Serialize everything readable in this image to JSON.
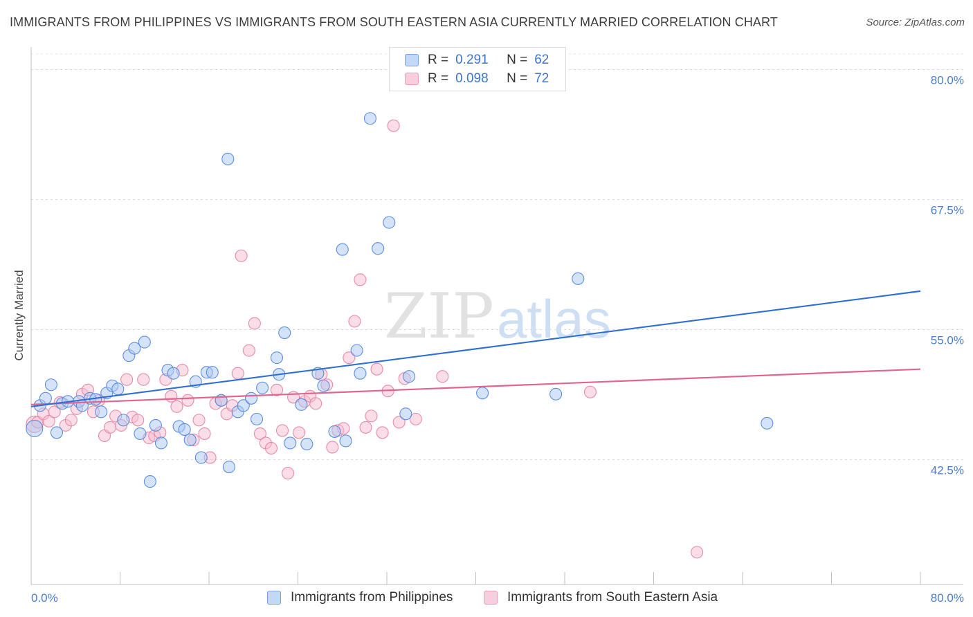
{
  "title": "IMMIGRANTS FROM PHILIPPINES VS IMMIGRANTS FROM SOUTH EASTERN ASIA CURRENTLY MARRIED CORRELATION CHART",
  "source": "Source: ZipAtlas.com",
  "watermark": {
    "zip": "ZIP",
    "atlas": "atlas"
  },
  "legend": {
    "rows": [
      {
        "r_label": "R =",
        "r_value": "0.291",
        "n_label": "N =",
        "n_value": "62"
      },
      {
        "r_label": "R =",
        "r_value": "0.098",
        "n_label": "N =",
        "n_value": "72"
      }
    ]
  },
  "colors": {
    "blue_fill": "#a9c8f2",
    "blue_stroke": "#5b8ee0",
    "blue_line": "#2f6fd3",
    "pink_fill": "#f6bcd0",
    "pink_stroke": "#e68aa8",
    "pink_line": "#e0658f",
    "tick_text": "#4a7cc9"
  },
  "chart_data": {
    "type": "scatter",
    "title": "IMMIGRANTS FROM PHILIPPINES VS IMMIGRANTS FROM SOUTH EASTERN ASIA CURRENTLY MARRIED CORRELATION CHART",
    "xlabel": "",
    "ylabel": "Currently Married",
    "xlim": [
      0,
      80
    ],
    "ylim": [
      30.5,
      81.5
    ],
    "x_tick_labels": [
      {
        "value": 0,
        "label": "0.0%"
      },
      {
        "value": 80,
        "label": "80.0%"
      }
    ],
    "y_ticks": [
      {
        "value": 42.5,
        "label": "42.5%"
      },
      {
        "value": 55.0,
        "label": "55.0%"
      },
      {
        "value": 67.5,
        "label": "67.5%"
      },
      {
        "value": 80.0,
        "label": "80.0%"
      }
    ],
    "grid": "horizontal dashed",
    "legend_position": "top-center",
    "series": [
      {
        "name": "Immigrants from Philippines",
        "r": 0.291,
        "n": 62,
        "trend": {
          "x": [
            0,
            80
          ],
          "y": [
            47.6,
            58.7
          ]
        },
        "points": [
          [
            0.3,
            45.5
          ],
          [
            0.8,
            47.7
          ],
          [
            1.3,
            48.4
          ],
          [
            1.8,
            49.7
          ],
          [
            2.3,
            45.1
          ],
          [
            2.8,
            47.9
          ],
          [
            3.3,
            48.1
          ],
          [
            4.3,
            48.1
          ],
          [
            4.6,
            47.7
          ],
          [
            5.3,
            48.4
          ],
          [
            5.8,
            48.3
          ],
          [
            6.3,
            47.1
          ],
          [
            6.8,
            48.9
          ],
          [
            7.3,
            49.6
          ],
          [
            7.8,
            49.3
          ],
          [
            8.3,
            46.3
          ],
          [
            8.8,
            52.5
          ],
          [
            9.3,
            53.2
          ],
          [
            10.2,
            53.8
          ],
          [
            9.8,
            45.0
          ],
          [
            11.2,
            45.8
          ],
          [
            11.7,
            44.1
          ],
          [
            12.3,
            51.1
          ],
          [
            12.8,
            50.8
          ],
          [
            13.3,
            45.7
          ],
          [
            13.8,
            45.4
          ],
          [
            14.3,
            44.4
          ],
          [
            14.8,
            50.0
          ],
          [
            15.3,
            42.7
          ],
          [
            15.8,
            50.9
          ],
          [
            16.3,
            50.9
          ],
          [
            10.7,
            40.4
          ],
          [
            17.1,
            48.2
          ],
          [
            17.8,
            41.8
          ],
          [
            18.6,
            47.1
          ],
          [
            19.1,
            47.7
          ],
          [
            19.8,
            48.4
          ],
          [
            20.3,
            46.4
          ],
          [
            20.8,
            49.4
          ],
          [
            22.1,
            52.3
          ],
          [
            22.3,
            50.7
          ],
          [
            22.8,
            54.7
          ],
          [
            23.3,
            44.1
          ],
          [
            24.3,
            47.8
          ],
          [
            24.8,
            44.0
          ],
          [
            25.8,
            50.8
          ],
          [
            26.3,
            49.6
          ],
          [
            27.3,
            45.2
          ],
          [
            28.3,
            44.3
          ],
          [
            28.0,
            62.7
          ],
          [
            29.3,
            53.0
          ],
          [
            29.6,
            50.8
          ],
          [
            31.2,
            62.8
          ],
          [
            32.2,
            65.3
          ],
          [
            33.7,
            46.9
          ],
          [
            34.0,
            50.5
          ],
          [
            17.7,
            71.4
          ],
          [
            30.5,
            75.3
          ],
          [
            49.2,
            59.9
          ],
          [
            47.2,
            48.8
          ],
          [
            66.2,
            46.0
          ],
          [
            40.6,
            48.9
          ]
        ]
      },
      {
        "name": "Immigrants from South Eastern Asia",
        "r": 0.098,
        "n": 72,
        "trend": {
          "x": [
            0,
            80
          ],
          "y": [
            47.8,
            51.2
          ]
        },
        "points": [
          [
            0.3,
            45.9
          ],
          [
            0.6,
            46.1
          ],
          [
            1.1,
            46.9
          ],
          [
            1.6,
            46.2
          ],
          [
            2.1,
            47.1
          ],
          [
            2.6,
            48.0
          ],
          [
            3.1,
            45.8
          ],
          [
            3.6,
            46.3
          ],
          [
            4.1,
            47.4
          ],
          [
            4.6,
            48.8
          ],
          [
            5.1,
            49.2
          ],
          [
            5.6,
            47.1
          ],
          [
            6.1,
            48.2
          ],
          [
            6.6,
            44.8
          ],
          [
            7.1,
            45.6
          ],
          [
            7.6,
            46.7
          ],
          [
            8.1,
            45.8
          ],
          [
            8.6,
            50.2
          ],
          [
            9.1,
            46.6
          ],
          [
            9.6,
            46.3
          ],
          [
            10.1,
            50.2
          ],
          [
            10.6,
            44.6
          ],
          [
            11.1,
            44.8
          ],
          [
            11.6,
            45.1
          ],
          [
            12.1,
            50.2
          ],
          [
            12.6,
            48.6
          ],
          [
            13.1,
            47.6
          ],
          [
            13.6,
            51.1
          ],
          [
            14.1,
            48.2
          ],
          [
            14.6,
            44.4
          ],
          [
            15.1,
            46.3
          ],
          [
            15.6,
            45.0
          ],
          [
            16.1,
            42.7
          ],
          [
            16.6,
            47.9
          ],
          [
            17.1,
            48.2
          ],
          [
            17.6,
            46.9
          ],
          [
            18.1,
            47.7
          ],
          [
            18.6,
            50.8
          ],
          [
            18.9,
            62.1
          ],
          [
            19.6,
            53.0
          ],
          [
            20.1,
            55.6
          ],
          [
            20.6,
            45.0
          ],
          [
            21.1,
            44.1
          ],
          [
            21.6,
            43.6
          ],
          [
            22.1,
            49.2
          ],
          [
            22.6,
            45.3
          ],
          [
            23.1,
            41.2
          ],
          [
            23.6,
            48.5
          ],
          [
            24.1,
            45.1
          ],
          [
            24.6,
            48.1
          ],
          [
            25.1,
            48.6
          ],
          [
            25.6,
            47.9
          ],
          [
            26.1,
            50.7
          ],
          [
            26.6,
            49.7
          ],
          [
            27.1,
            43.7
          ],
          [
            27.6,
            45.3
          ],
          [
            28.1,
            45.5
          ],
          [
            28.6,
            52.3
          ],
          [
            29.1,
            55.8
          ],
          [
            29.6,
            59.8
          ],
          [
            30.1,
            45.6
          ],
          [
            30.6,
            46.7
          ],
          [
            31.1,
            51.2
          ],
          [
            31.6,
            45.1
          ],
          [
            32.1,
            49.1
          ],
          [
            32.6,
            74.6
          ],
          [
            33.1,
            46.1
          ],
          [
            33.6,
            50.3
          ],
          [
            34.6,
            46.4
          ],
          [
            37.0,
            50.5
          ],
          [
            50.3,
            49.0
          ],
          [
            59.9,
            33.6
          ]
        ]
      }
    ]
  }
}
